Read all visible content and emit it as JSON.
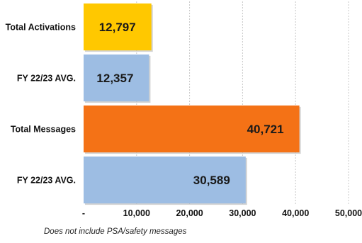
{
  "chart_data": {
    "type": "bar",
    "orientation": "horizontal",
    "categories": [
      "Total Activations",
      "FY 22/23 AVG.",
      "Total Messages",
      "FY 22/23 AVG."
    ],
    "values": [
      12797,
      12357,
      40721,
      30589
    ],
    "value_labels": [
      "12,797",
      "12,357",
      "40,721",
      "30,589"
    ],
    "colors": [
      "#FFC800",
      "#9DBDE3",
      "#F47216",
      "#9DBDE3"
    ],
    "xlim": [
      0,
      50000
    ],
    "x_ticks": [
      0,
      10000,
      20000,
      30000,
      40000,
      50000
    ],
    "x_tick_labels": [
      "-",
      "10,000",
      "20,000",
      "30,000",
      "40,000",
      "50,000"
    ],
    "grid": "vertical dashed",
    "legend": "none"
  },
  "footnote": "Does not include PSA/safety messages"
}
